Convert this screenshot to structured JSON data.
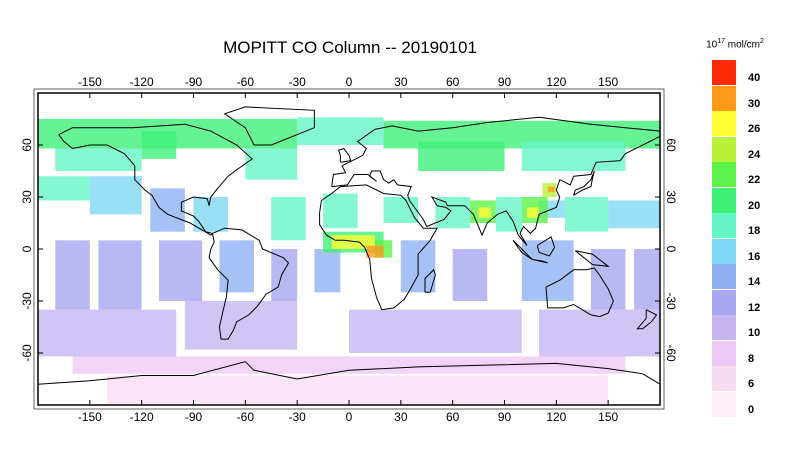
{
  "title": "MOPITT CO Column -- 20190101",
  "unit": {
    "base": "10",
    "exp1": "17",
    "mid": " mol/cm",
    "exp2": "2"
  },
  "longitude_ticks": [
    "-150",
    "-120",
    "-90",
    "-60",
    "-30",
    "0",
    "30",
    "60",
    "90",
    "120",
    "150"
  ],
  "longitude_values": [
    -150,
    -120,
    -90,
    -60,
    -30,
    0,
    30,
    60,
    90,
    120,
    150
  ],
  "latitude_ticks": [
    "60",
    "30",
    "0",
    "-30",
    "-60"
  ],
  "latitude_values": [
    60,
    30,
    0,
    -30,
    -60
  ],
  "legend": [
    {
      "label": "40",
      "color": "#ff2a00"
    },
    {
      "label": "30",
      "color": "#ff9a1a"
    },
    {
      "label": "26",
      "color": "#ffff33"
    },
    {
      "label": "24",
      "color": "#b8f23a"
    },
    {
      "label": "22",
      "color": "#5cf24a"
    },
    {
      "label": "20",
      "color": "#3ef078"
    },
    {
      "label": "18",
      "color": "#66f5c8"
    },
    {
      "label": "16",
      "color": "#7fd8f5"
    },
    {
      "label": "14",
      "color": "#8fb1f3"
    },
    {
      "label": "12",
      "color": "#a9a6ef"
    },
    {
      "label": "10",
      "color": "#c5b6f2"
    },
    {
      "label": "8",
      "color": "#eec9f5"
    },
    {
      "label": "6",
      "color": "#f7dcf1"
    },
    {
      "label": "0",
      "color": "#fdf0f8"
    }
  ]
}
